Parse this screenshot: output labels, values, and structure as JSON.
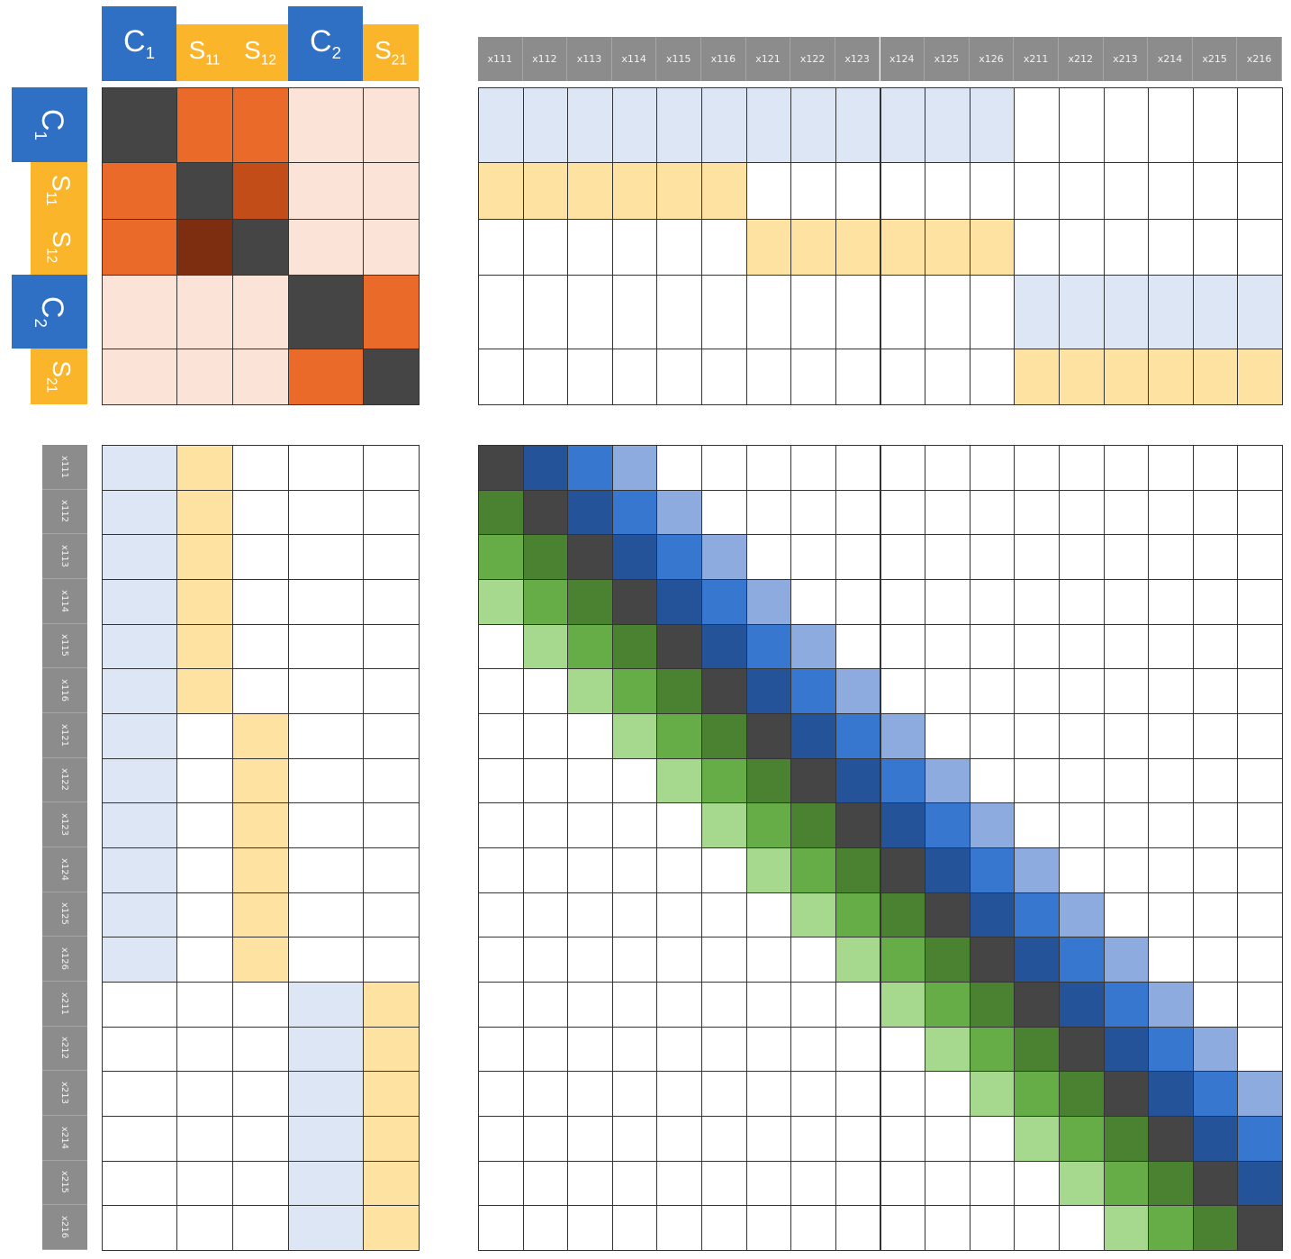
{
  "colors": {
    "dark": "#454545",
    "orange": "#ea6a2a",
    "orange_dark": "#c24d18",
    "brown": "#7d2e10",
    "peach": "#fbe3d8",
    "blue_light": "#dce6f4",
    "yellow_light": "#fde2a1",
    "blue1": "#24539a",
    "blue2": "#3877cf",
    "blue3": "#8dabdf",
    "green1": "#4a8232",
    "green2": "#66ad48",
    "green3": "#a6d88e",
    "header_blue": "#2f6fc4",
    "header_yellow": "#fbb52a",
    "header_gray": "#8c8c8c"
  },
  "group_headers": [
    {
      "id": "C1",
      "main": "C",
      "sub": "1",
      "type": "c"
    },
    {
      "id": "S11",
      "main": "S",
      "sub": "11",
      "type": "s"
    },
    {
      "id": "S12",
      "main": "S",
      "sub": "12",
      "type": "s"
    },
    {
      "id": "C2",
      "main": "C",
      "sub": "2",
      "type": "c"
    },
    {
      "id": "S21",
      "main": "S",
      "sub": "21",
      "type": "s"
    }
  ],
  "variable_labels": [
    "x111",
    "x112",
    "x113",
    "x114",
    "x115",
    "x116",
    "x121",
    "x122",
    "x123",
    "x124",
    "x125",
    "x126",
    "x211",
    "x212",
    "x213",
    "x214",
    "x215",
    "x216"
  ],
  "group_matrix": [
    [
      "dark",
      "orange",
      "orange",
      "peach",
      "peach"
    ],
    [
      "orange",
      "dark",
      "orange_dark",
      "peach",
      "peach"
    ],
    [
      "orange",
      "brown",
      "dark",
      "peach",
      "peach"
    ],
    [
      "peach",
      "peach",
      "peach",
      "dark",
      "orange"
    ],
    [
      "peach",
      "peach",
      "peach",
      "orange",
      "dark"
    ]
  ],
  "membership": {
    "C1": [
      1,
      1,
      1,
      1,
      1,
      1,
      1,
      1,
      1,
      1,
      1,
      1,
      0,
      0,
      0,
      0,
      0,
      0
    ],
    "S11": [
      1,
      1,
      1,
      1,
      1,
      1,
      0,
      0,
      0,
      0,
      0,
      0,
      0,
      0,
      0,
      0,
      0,
      0
    ],
    "S12": [
      0,
      0,
      0,
      0,
      0,
      0,
      1,
      1,
      1,
      1,
      1,
      1,
      0,
      0,
      0,
      0,
      0,
      0
    ],
    "C2": [
      0,
      0,
      0,
      0,
      0,
      0,
      0,
      0,
      0,
      0,
      0,
      0,
      1,
      1,
      1,
      1,
      1,
      1
    ],
    "S21": [
      0,
      0,
      0,
      0,
      0,
      0,
      0,
      0,
      0,
      0,
      0,
      0,
      1,
      1,
      1,
      1,
      1,
      1
    ]
  },
  "band": {
    "above": {
      "1": "blue1",
      "2": "blue2",
      "3": "blue3"
    },
    "below": {
      "1": "green1",
      "2": "green2",
      "3": "green3"
    },
    "diagonal": "dark"
  }
}
